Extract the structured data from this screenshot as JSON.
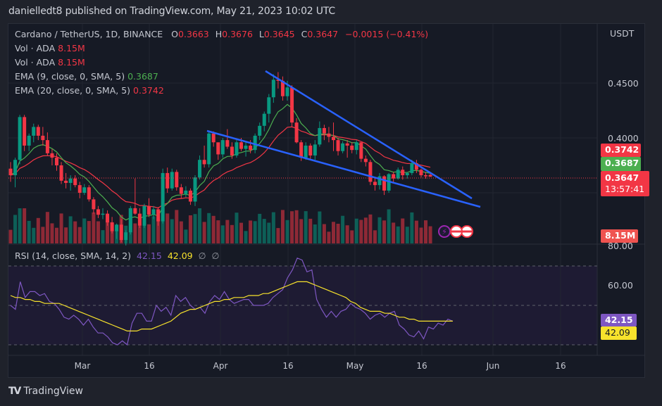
{
  "header": {
    "published": "danielledt8 published on TradingView.com, May 21, 2023 10:02 UTC"
  },
  "symbol": {
    "title": "Cardano / TetherUS, 1D, BINANCE",
    "o_label": "O",
    "o": "0.3663",
    "h_label": "H",
    "h": "0.3676",
    "l_label": "L",
    "l": "0.3645",
    "c_label": "C",
    "c": "0.3647",
    "change": "−0.0015 (−0.41%)"
  },
  "indicators": [
    {
      "label": "Vol · ADA",
      "value": "8.15M"
    },
    {
      "label": "Vol · ADA",
      "value": "8.15M"
    },
    {
      "label": "EMA (9, close, 0, SMA, 5)",
      "value": "0.3687"
    },
    {
      "label": "EMA (20, close, 0, SMA, 5)",
      "value": "0.3742"
    }
  ],
  "rsi": {
    "label": "RSI (14, close, SMA, 14, 2)",
    "value": "42.15",
    "ma": "42.09",
    "extra1": "∅",
    "extra2": "∅"
  },
  "price_axis": {
    "currency": "USDT",
    "ticks": [
      "0.4500",
      "0.4000"
    ],
    "badges": {
      "ema20": "0.3742",
      "ema9": "0.3687",
      "last": "0.3647",
      "countdown": "13:57:41",
      "volume": "8.15M"
    }
  },
  "rsi_axis": {
    "ticks": [
      "80.00",
      "60.00"
    ],
    "rsi_badge": "42.15",
    "ma_badge": "42.09"
  },
  "time_axis": [
    "Mar",
    "16",
    "Apr",
    "16",
    "May",
    "16",
    "Jun",
    "16"
  ],
  "brand": {
    "name": "TradingView"
  },
  "colors": {
    "up": "#089981",
    "down": "#f23645",
    "ema9": "#4caf50",
    "ema20": "#f23645",
    "trend": "#2962ff",
    "rsi": "#7e57c2",
    "rsi_ma": "#f7e22c",
    "last_price": "#f23645"
  },
  "chart_data": {
    "type": "candlestick",
    "title": "Cardano / TetherUS, 1D, BINANCE",
    "ylabel": "USDT",
    "ylim": [
      0.33,
      0.47
    ],
    "x_ticks": [
      "Mar",
      "16",
      "Apr",
      "16",
      "May",
      "16",
      "Jun",
      "16"
    ],
    "candles": [
      [
        0.372,
        0.378,
        0.36,
        0.366
      ],
      [
        0.366,
        0.382,
        0.355,
        0.38
      ],
      [
        0.38,
        0.421,
        0.376,
        0.419
      ],
      [
        0.419,
        0.421,
        0.388,
        0.393
      ],
      [
        0.393,
        0.404,
        0.388,
        0.402
      ],
      [
        0.402,
        0.413,
        0.396,
        0.41
      ],
      [
        0.41,
        0.412,
        0.398,
        0.402
      ],
      [
        0.402,
        0.41,
        0.393,
        0.398
      ],
      [
        0.398,
        0.405,
        0.384,
        0.386
      ],
      [
        0.386,
        0.39,
        0.375,
        0.382
      ],
      [
        0.382,
        0.386,
        0.37,
        0.375
      ],
      [
        0.375,
        0.378,
        0.358,
        0.361
      ],
      [
        0.361,
        0.368,
        0.354,
        0.359
      ],
      [
        0.359,
        0.366,
        0.352,
        0.363
      ],
      [
        0.363,
        0.366,
        0.355,
        0.357
      ],
      [
        0.357,
        0.36,
        0.345,
        0.35
      ],
      [
        0.35,
        0.358,
        0.348,
        0.355
      ],
      [
        0.355,
        0.357,
        0.342,
        0.344
      ],
      [
        0.344,
        0.346,
        0.331,
        0.335
      ],
      [
        0.335,
        0.338,
        0.327,
        0.33
      ],
      [
        0.33,
        0.336,
        0.326,
        0.331
      ],
      [
        0.331,
        0.334,
        0.32,
        0.323
      ],
      [
        0.323,
        0.328,
        0.313,
        0.315
      ],
      [
        0.315,
        0.322,
        0.308,
        0.321
      ],
      [
        0.321,
        0.326,
        0.305,
        0.307
      ],
      [
        0.307,
        0.316,
        0.302,
        0.314
      ],
      [
        0.314,
        0.338,
        0.312,
        0.336
      ],
      [
        0.336,
        0.363,
        0.33,
        0.331
      ],
      [
        0.331,
        0.336,
        0.318,
        0.32
      ],
      [
        0.32,
        0.34,
        0.318,
        0.338
      ],
      [
        0.338,
        0.345,
        0.328,
        0.33
      ],
      [
        0.33,
        0.338,
        0.326,
        0.335
      ],
      [
        0.335,
        0.337,
        0.32,
        0.324
      ],
      [
        0.324,
        0.372,
        0.322,
        0.368
      ],
      [
        0.368,
        0.373,
        0.35,
        0.354
      ],
      [
        0.354,
        0.372,
        0.352,
        0.369
      ],
      [
        0.369,
        0.371,
        0.352,
        0.355
      ],
      [
        0.355,
        0.358,
        0.345,
        0.349
      ],
      [
        0.349,
        0.356,
        0.346,
        0.352
      ],
      [
        0.352,
        0.354,
        0.339,
        0.342
      ],
      [
        0.342,
        0.366,
        0.338,
        0.364
      ],
      [
        0.364,
        0.384,
        0.362,
        0.38
      ],
      [
        0.38,
        0.393,
        0.373,
        0.376
      ],
      [
        0.376,
        0.406,
        0.373,
        0.404
      ],
      [
        0.404,
        0.406,
        0.392,
        0.396
      ],
      [
        0.396,
        0.39,
        0.38,
        0.385
      ],
      [
        0.385,
        0.4,
        0.382,
        0.398
      ],
      [
        0.398,
        0.408,
        0.39,
        0.392
      ],
      [
        0.392,
        0.396,
        0.381,
        0.384
      ],
      [
        0.384,
        0.398,
        0.382,
        0.396
      ],
      [
        0.396,
        0.4,
        0.388,
        0.39
      ],
      [
        0.39,
        0.397,
        0.383,
        0.393
      ],
      [
        0.393,
        0.398,
        0.386,
        0.389
      ],
      [
        0.389,
        0.404,
        0.386,
        0.402
      ],
      [
        0.402,
        0.414,
        0.398,
        0.411
      ],
      [
        0.411,
        0.424,
        0.406,
        0.422
      ],
      [
        0.422,
        0.44,
        0.414,
        0.437
      ],
      [
        0.437,
        0.458,
        0.432,
        0.453
      ],
      [
        0.453,
        0.46,
        0.445,
        0.452
      ],
      [
        0.452,
        0.456,
        0.434,
        0.438
      ],
      [
        0.438,
        0.452,
        0.434,
        0.446
      ],
      [
        0.446,
        0.448,
        0.41,
        0.414
      ],
      [
        0.414,
        0.418,
        0.395,
        0.396
      ],
      [
        0.396,
        0.398,
        0.379,
        0.382
      ],
      [
        0.382,
        0.396,
        0.38,
        0.393
      ],
      [
        0.393,
        0.395,
        0.381,
        0.384
      ],
      [
        0.384,
        0.398,
        0.38,
        0.394
      ],
      [
        0.394,
        0.415,
        0.392,
        0.409
      ],
      [
        0.409,
        0.412,
        0.398,
        0.404
      ],
      [
        0.404,
        0.41,
        0.396,
        0.401
      ],
      [
        0.401,
        0.414,
        0.388,
        0.398
      ],
      [
        0.398,
        0.4,
        0.384,
        0.388
      ],
      [
        0.388,
        0.397,
        0.386,
        0.395
      ],
      [
        0.395,
        0.398,
        0.382,
        0.393
      ],
      [
        0.393,
        0.396,
        0.386,
        0.389
      ],
      [
        0.389,
        0.398,
        0.385,
        0.396
      ],
      [
        0.396,
        0.396,
        0.378,
        0.381
      ],
      [
        0.381,
        0.384,
        0.374,
        0.378
      ],
      [
        0.378,
        0.38,
        0.357,
        0.36
      ],
      [
        0.36,
        0.364,
        0.352,
        0.357
      ],
      [
        0.357,
        0.368,
        0.353,
        0.365
      ],
      [
        0.365,
        0.366,
        0.348,
        0.352
      ],
      [
        0.352,
        0.368,
        0.35,
        0.367
      ],
      [
        0.367,
        0.369,
        0.36,
        0.363
      ],
      [
        0.363,
        0.373,
        0.362,
        0.371
      ],
      [
        0.371,
        0.374,
        0.362,
        0.366
      ],
      [
        0.366,
        0.369,
        0.363,
        0.368
      ],
      [
        0.368,
        0.38,
        0.366,
        0.377
      ],
      [
        0.377,
        0.38,
        0.368,
        0.371
      ],
      [
        0.371,
        0.372,
        0.364,
        0.366
      ],
      [
        0.366,
        0.369,
        0.363,
        0.365
      ],
      [
        0.3663,
        0.3676,
        0.3645,
        0.3647
      ]
    ],
    "ema9_last": 0.3687,
    "ema20_last": 0.3742,
    "rsi": {
      "ylim": [
        20,
        80
      ],
      "bands": [
        30,
        50,
        70
      ],
      "values": [
        50,
        48,
        62,
        54,
        57,
        57,
        55,
        56,
        52,
        51,
        48,
        44,
        43,
        45,
        43,
        40,
        43,
        39,
        36,
        36,
        34,
        31,
        30,
        32,
        30,
        41,
        46,
        46,
        42,
        42,
        50,
        47,
        49,
        45,
        55,
        52,
        54,
        50,
        48,
        49,
        46,
        52,
        55,
        53,
        57,
        53,
        51,
        52,
        53,
        53,
        50,
        50,
        50,
        51,
        54,
        56,
        58,
        64,
        68,
        74,
        73,
        67,
        68,
        53,
        48,
        44,
        47,
        44,
        47,
        48,
        51,
        49,
        48,
        46,
        43,
        45,
        46,
        44,
        46,
        47,
        40,
        38,
        35,
        34,
        37,
        33,
        39,
        38,
        41,
        40,
        43,
        42
      ],
      "ma_values": [
        55,
        54,
        54,
        53,
        53,
        52,
        52,
        51,
        51,
        51,
        51,
        50,
        49,
        48,
        47,
        46,
        45,
        44,
        43,
        42,
        41,
        40,
        39,
        38,
        37,
        37,
        37,
        38,
        38,
        38,
        39,
        40,
        41,
        42,
        44,
        46,
        47,
        48,
        48,
        49,
        50,
        51,
        52,
        52,
        53,
        53,
        54,
        54,
        54,
        55,
        55,
        55,
        56,
        56,
        57,
        58,
        59,
        60,
        61,
        62,
        62,
        62,
        61,
        60,
        59,
        58,
        57,
        56,
        55,
        54,
        52,
        51,
        49,
        48,
        47,
        47,
        47,
        46,
        46,
        45,
        44,
        44,
        43,
        43,
        42,
        42,
        42,
        42,
        42,
        42,
        42,
        42
      ]
    }
  }
}
